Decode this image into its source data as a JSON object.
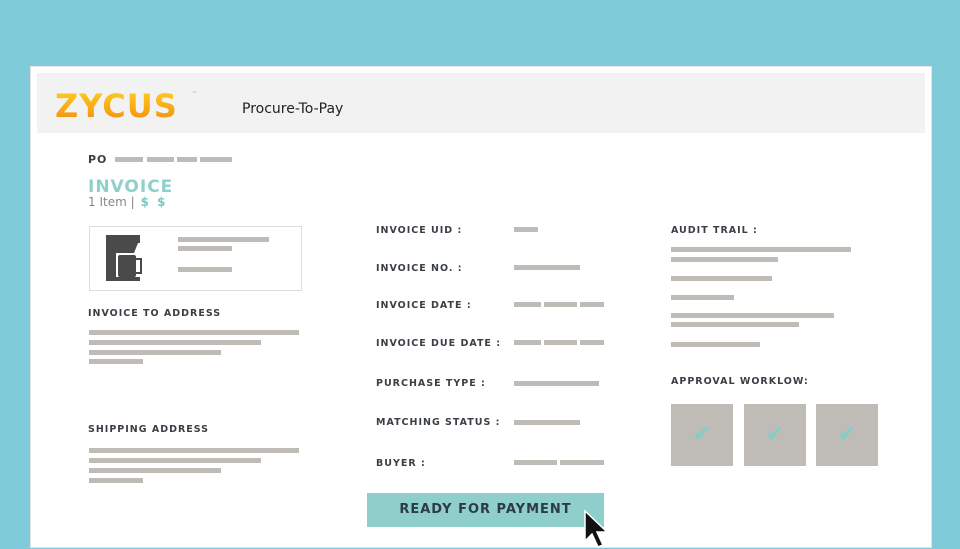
{
  "header": {
    "logo": "ZYCUS",
    "title": "Procure-To-Pay"
  },
  "po": {
    "label": "PO"
  },
  "invoice": {
    "title": "INVOICE",
    "items": "1 Item",
    "separator": "|",
    "amount": "$ $"
  },
  "left": {
    "invoice_to_address": "INVOICE TO ADDRESS",
    "shipping_address": "SHIPPING ADDRESS"
  },
  "fields": [
    "INVOICE UID :",
    "INVOICE NO. :",
    "INVOICE DATE :",
    "INVOICE DUE DATE :",
    "PURCHASE TYPE :",
    "MATCHING STATUS :",
    "BUYER :"
  ],
  "audit": {
    "title": "AUDIT TRAIL :"
  },
  "approval": {
    "title": "APPROVAL WORKLOW:",
    "steps": [
      "✔",
      "✔",
      "✔"
    ]
  },
  "action": {
    "label": "READY FOR PAYMENT"
  },
  "colors": {
    "accent": "#8ecfcb",
    "background": "#7fcbd9",
    "placeholder": "#bfbbb7"
  }
}
